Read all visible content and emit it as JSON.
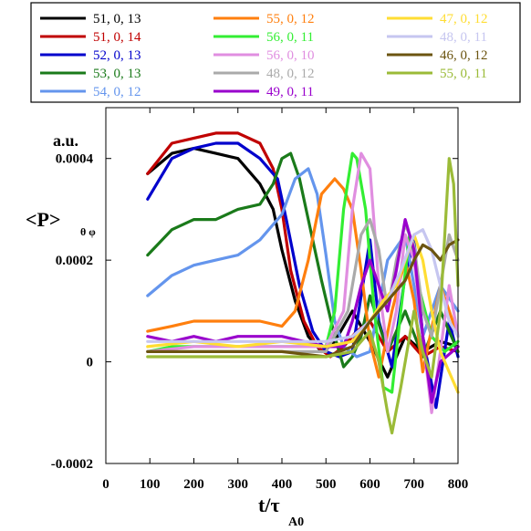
{
  "chart_data": {
    "type": "line",
    "ylabel_unit": "a.u.",
    "ylabel_main": "<P>",
    "ylabel_sub": "θ φ",
    "xlabel_main": "t/τ",
    "xlabel_sub": "A0",
    "xlim": [
      0,
      800
    ],
    "ylim": [
      -0.0002,
      0.0005
    ],
    "x_ticks": [
      0,
      100,
      200,
      300,
      400,
      500,
      600,
      700,
      800
    ],
    "x_tick_labels": [
      "0",
      "100",
      "200",
      "300",
      "400",
      "500",
      "600",
      "700",
      "800"
    ],
    "y_ticks": [
      -0.0002,
      0,
      0.0002,
      0.0004
    ],
    "y_tick_labels": [
      "-0.0002",
      "0",
      "0.0002",
      "0.0004"
    ],
    "legend_position": "top",
    "series": [
      {
        "name": "51,  0, 13",
        "color": "#000000",
        "x": [
          95,
          150,
          200,
          250,
          300,
          350,
          380,
          400,
          430,
          460,
          490,
          520,
          560,
          600,
          640,
          680,
          720,
          760,
          800
        ],
        "y": [
          0.00037,
          0.00041,
          0.00042,
          0.00041,
          0.0004,
          0.00035,
          0.0003,
          0.00022,
          0.00012,
          5e-05,
          2e-05,
          4e-05,
          0.0001,
          4e-05,
          -3e-05,
          5e-05,
          2e-05,
          4e-05,
          3e-05
        ]
      },
      {
        "name": "51,  0, 14",
        "color": "#c00000",
        "x": [
          95,
          150,
          200,
          250,
          300,
          350,
          380,
          400,
          420,
          450,
          480,
          510,
          540,
          570,
          600,
          640,
          680,
          720,
          760,
          800
        ],
        "y": [
          0.00037,
          0.00043,
          0.00044,
          0.00045,
          0.00045,
          0.00043,
          0.00038,
          0.0003,
          0.00018,
          8e-05,
          3e-05,
          1e-05,
          3e-05,
          6e-05,
          8e-05,
          2e-05,
          5e-05,
          1e-05,
          3e-05,
          2e-05
        ]
      },
      {
        "name": "52,  0, 13",
        "color": "#0000cc",
        "x": [
          95,
          150,
          200,
          250,
          300,
          350,
          390,
          410,
          440,
          470,
          500,
          530,
          560,
          600,
          620,
          650,
          680,
          700,
          720,
          750,
          780,
          800
        ],
        "y": [
          0.00032,
          0.0004,
          0.00042,
          0.00043,
          0.00043,
          0.0004,
          0.00036,
          0.00028,
          0.00015,
          6e-05,
          2e-05,
          1e-05,
          2e-05,
          0.00024,
          8e-05,
          -1e-05,
          0.00017,
          0.00024,
          5e-05,
          -9e-05,
          8e-05,
          1e-05
        ]
      },
      {
        "name": "53,  0, 13",
        "color": "#1a7a1a",
        "x": [
          95,
          150,
          200,
          250,
          300,
          350,
          380,
          400,
          420,
          440,
          460,
          490,
          520,
          540,
          560,
          580,
          600,
          640,
          680,
          720,
          760,
          800
        ],
        "y": [
          0.00021,
          0.00026,
          0.00028,
          0.00028,
          0.0003,
          0.00031,
          0.00035,
          0.0004,
          0.00041,
          0.00036,
          0.00028,
          0.00016,
          5e-05,
          -1e-05,
          1e-05,
          5e-05,
          0.00013,
          2e-05,
          0.0001,
          1e-05,
          0.0001,
          2e-05
        ]
      },
      {
        "name": "54,  0, 12",
        "color": "#6495ed",
        "x": [
          95,
          150,
          200,
          250,
          300,
          350,
          400,
          430,
          460,
          480,
          500,
          520,
          540,
          570,
          600,
          640,
          680,
          720,
          760,
          800
        ],
        "y": [
          0.00013,
          0.00017,
          0.00019,
          0.0002,
          0.00021,
          0.00024,
          0.00029,
          0.00036,
          0.00038,
          0.00033,
          0.00021,
          8e-05,
          3e-05,
          1e-05,
          2e-05,
          0.0002,
          0.00025,
          5e-05,
          0.00015,
          0.0001
        ]
      },
      {
        "name": "55,  0, 12",
        "color": "#ff7f0e",
        "x": [
          95,
          150,
          200,
          250,
          300,
          350,
          400,
          430,
          460,
          490,
          520,
          540,
          560,
          580,
          600,
          620,
          650,
          680,
          700,
          720,
          760,
          800
        ],
        "y": [
          6e-05,
          7e-05,
          8e-05,
          8e-05,
          8e-05,
          8e-05,
          7e-05,
          0.0001,
          0.0002,
          0.00033,
          0.00036,
          0.00034,
          0.0003,
          0.00018,
          4e-05,
          -3e-05,
          0.0001,
          0.0002,
          0.00012,
          -2e-05,
          0.00015,
          5e-05
        ]
      },
      {
        "name": "56,  0, 11",
        "color": "#33ee33",
        "x": [
          95,
          150,
          200,
          250,
          300,
          350,
          400,
          450,
          500,
          520,
          540,
          560,
          570,
          590,
          610,
          630,
          650,
          670,
          690,
          710,
          740,
          770,
          800
        ],
        "y": [
          2e-05,
          3e-05,
          3e-05,
          3e-05,
          3e-05,
          3e-05,
          3e-05,
          3e-05,
          3e-05,
          0.0001,
          0.0003,
          0.00041,
          0.0004,
          0.0003,
          0.0001,
          -5e-05,
          -6e-05,
          0.0001,
          0.00025,
          0.00015,
          5e-05,
          2e-05,
          4e-05
        ]
      },
      {
        "name": "56,  0, 10",
        "color": "#e08ee0",
        "x": [
          95,
          200,
          300,
          400,
          500,
          540,
          560,
          580,
          600,
          620,
          640,
          660,
          680,
          700,
          720,
          740,
          760,
          780,
          800
        ],
        "y": [
          2e-05,
          3e-05,
          3e-05,
          3e-05,
          3e-05,
          0.0001,
          0.0003,
          0.00041,
          0.00038,
          0.00015,
          2e-05,
          0.0001,
          0.00025,
          0.0002,
          5e-05,
          -0.0001,
          2e-05,
          0.00015,
          5e-05
        ]
      },
      {
        "name": "48,  0, 12",
        "color": "#aaaaaa",
        "x": [
          95,
          200,
          300,
          400,
          500,
          550,
          580,
          600,
          620,
          640,
          660,
          680,
          700,
          720,
          740,
          760,
          780,
          800
        ],
        "y": [
          2e-05,
          2e-05,
          2e-05,
          2e-05,
          2e-05,
          0.0001,
          0.00025,
          0.00028,
          0.00022,
          0.0001,
          0.0002,
          0.00027,
          0.00023,
          0.0001,
          5e-05,
          0.00015,
          0.00025,
          0.0002
        ]
      },
      {
        "name": "49,  0, 11",
        "color": "#9900cc",
        "x": [
          95,
          150,
          200,
          250,
          300,
          350,
          400,
          450,
          500,
          540,
          560,
          580,
          600,
          620,
          640,
          660,
          680,
          700,
          720,
          740,
          760,
          800
        ],
        "y": [
          5e-05,
          4e-05,
          5e-05,
          4e-05,
          5e-05,
          5e-05,
          5e-05,
          4e-05,
          3e-05,
          3e-05,
          8e-05,
          0.00015,
          0.0002,
          0.00015,
          0.0001,
          0.00018,
          0.00028,
          0.00022,
          5e-05,
          -8e-05,
          0.0,
          3e-05
        ]
      },
      {
        "name": "47,  0, 12",
        "color": "#ffdd33",
        "x": [
          95,
          200,
          300,
          400,
          500,
          560,
          600,
          630,
          660,
          680,
          700,
          720,
          740,
          760,
          780,
          800
        ],
        "y": [
          3e-05,
          4e-05,
          3e-05,
          4e-05,
          3e-05,
          4e-05,
          8e-05,
          0.00012,
          0.00015,
          0.0002,
          0.00025,
          0.0002,
          0.0001,
          2e-05,
          -2e-05,
          -6e-05
        ]
      },
      {
        "name": "48,  0, 11",
        "color": "#c6c6f0",
        "x": [
          95,
          200,
          300,
          400,
          500,
          560,
          600,
          640,
          670,
          700,
          720,
          740,
          760,
          780,
          800
        ],
        "y": [
          4e-05,
          4e-05,
          4e-05,
          4e-05,
          4e-05,
          5e-05,
          8e-05,
          0.00012,
          0.00018,
          0.00025,
          0.00026,
          0.00022,
          0.00015,
          8e-05,
          5e-05
        ]
      },
      {
        "name": "46,  0, 12",
        "color": "#6b5410",
        "x": [
          95,
          200,
          300,
          400,
          500,
          560,
          600,
          640,
          680,
          700,
          720,
          740,
          760,
          780,
          800
        ],
        "y": [
          2e-05,
          2e-05,
          2e-05,
          2e-05,
          1e-05,
          3e-05,
          8e-05,
          0.00012,
          0.00016,
          0.0002,
          0.00023,
          0.00022,
          0.0002,
          0.00023,
          0.00024
        ]
      },
      {
        "name": "55,  0, 11",
        "color": "#9bbb38",
        "x": [
          95,
          200,
          300,
          400,
          500,
          560,
          600,
          620,
          640,
          650,
          670,
          700,
          720,
          740,
          760,
          780,
          790,
          800
        ],
        "y": [
          1e-05,
          1e-05,
          1e-05,
          1e-05,
          1e-05,
          2e-05,
          6e-05,
          0.0,
          -0.0001,
          -0.00014,
          -5e-05,
          0.0001,
          2e-05,
          -3e-05,
          0.0001,
          0.0004,
          0.00035,
          0.00015
        ]
      }
    ]
  }
}
